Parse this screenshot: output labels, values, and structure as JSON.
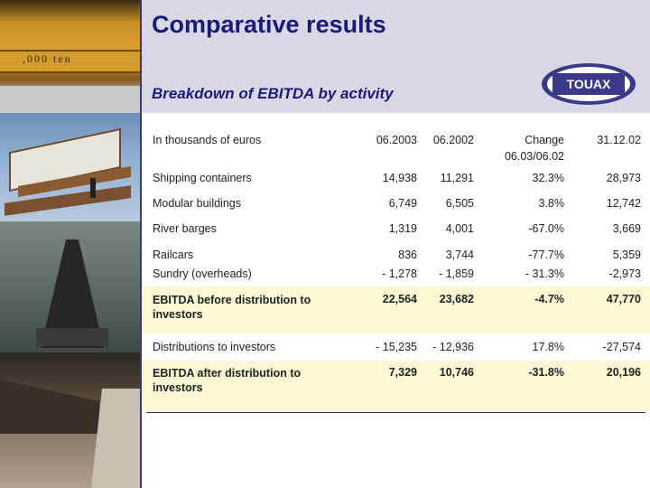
{
  "header": {
    "title": "Comparative results",
    "subtitle": "Breakdown of EBITDA by activity",
    "logo_text": "TOUAX"
  },
  "photos": {
    "crane_text": ",000 ",
    "crane_text2": "ten"
  },
  "table": {
    "unit_label": "In thousands of euros",
    "columns": [
      "06.2003",
      "06.2002",
      "Change",
      "06.03/06.02",
      "31.12.02"
    ],
    "rows": [
      {
        "label": "Shipping containers",
        "v1": "14,938",
        "v2": "11,291",
        "v3": "32.3%",
        "v4": "28,973"
      },
      {
        "label": "Modular buildings",
        "v1": "6,749",
        "v2": "6,505",
        "v3": "3.8%",
        "v4": "12,742"
      },
      {
        "label": "River barges",
        "v1": "1,319",
        "v2": "4,001",
        "v3": "-67.0%",
        "v4": "3,669"
      },
      {
        "label": "Railcars",
        "v1": "836",
        "v2": "3,744",
        "v3": "-77.7%",
        "v4": "5,359"
      },
      {
        "label": "Sundry (overheads)",
        "v1": "- 1,278",
        "v2": "- 1,859",
        "v3": "- 31.3%",
        "v4": "-2,973"
      },
      {
        "label": "EBITDA before distribution to investors",
        "v1": "22,564",
        "v2": "23,682",
        "v3": "-4.7%",
        "v4": "47,770"
      },
      {
        "label": "Distributions to investors",
        "v1": "- 15,235",
        "v2": "- 12,936",
        "v3": "17.8%",
        "v4": "-27,574"
      },
      {
        "label": "EBITDA after distribution to investors",
        "v1": "7,329",
        "v2": "10,746",
        "v3": "-31.8%",
        "v4": "20,196"
      }
    ]
  },
  "colors": {
    "title": "#1a1a7a",
    "header_bg": "#d9d9e6",
    "highlight_row": "#fbf6d4"
  }
}
